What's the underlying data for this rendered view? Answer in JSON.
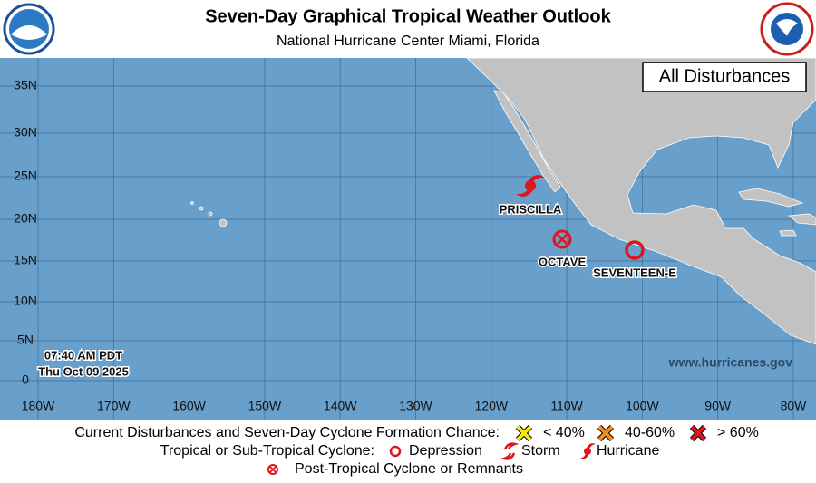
{
  "header": {
    "title": "Seven-Day Graphical Tropical Weather Outlook",
    "subtitle": "National Hurricane Center  Miami, Florida"
  },
  "map": {
    "badge": "All Disturbances",
    "lat_labels": [
      "35N",
      "30N",
      "25N",
      "20N",
      "15N",
      "10N",
      "5N",
      "0"
    ],
    "lon_labels": [
      "180W",
      "170W",
      "160W",
      "150W",
      "140W",
      "130W",
      "120W",
      "110W",
      "100W",
      "90W",
      "80W"
    ],
    "storms": [
      "PRISCILLA",
      "OCTAVE",
      "SEVENTEEN-E"
    ],
    "timestamp": [
      "07:40 AM PDT",
      "Thu Oct 09 2025"
    ],
    "website": "www.hurricanes.gov"
  },
  "legend": {
    "formation_label": "Current Disturbances and Seven-Day Cyclone Formation Chance:",
    "formation_items": [
      "< 40%",
      "40-60%",
      "> 60%"
    ],
    "cyclone_label": "Tropical or Sub-Tropical Cyclone:",
    "cyclone_items": [
      "Depression",
      "Storm",
      "Hurricane"
    ],
    "post_tropical": "Post-Tropical Cyclone or Remnants"
  }
}
